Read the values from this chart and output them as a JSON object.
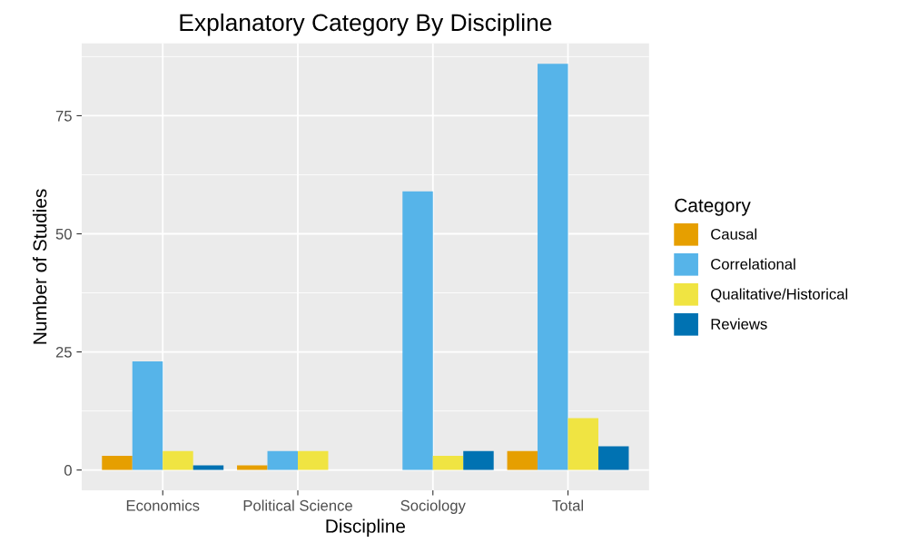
{
  "chart_data": {
    "type": "bar",
    "title": "Explanatory Category By Discipline",
    "xlabel": "Discipline",
    "ylabel": "Number of Studies",
    "legend_title": "Category",
    "categories": [
      "Economics",
      "Political Science",
      "Sociology",
      "Total"
    ],
    "series": [
      {
        "name": "Causal",
        "color": "#e69f00",
        "values": [
          3,
          1,
          0,
          4
        ]
      },
      {
        "name": "Correlational",
        "color": "#56b4e9",
        "values": [
          23,
          4,
          59,
          86
        ]
      },
      {
        "name": "Qualitative/Historical",
        "color": "#f0e442",
        "values": [
          4,
          4,
          3,
          11
        ]
      },
      {
        "name": "Reviews",
        "color": "#0072b2",
        "values": [
          1,
          0,
          4,
          5
        ]
      }
    ],
    "ylim": [
      -4.3,
      90.3
    ],
    "yticks": [
      0,
      25,
      50,
      75
    ],
    "grid": true,
    "legend": "right"
  }
}
